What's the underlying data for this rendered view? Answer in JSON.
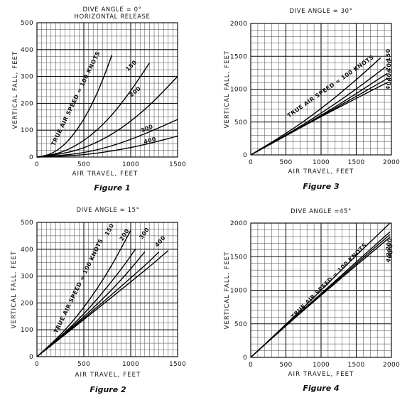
{
  "chart_data": [
    {
      "type": "line",
      "id": "fig1",
      "title": "DIVE ANGLE = 0°",
      "subtitle": "HORIZONTAL RELEASE",
      "xlabel": "AIR TRAVEL, FEET",
      "ylabel": "VERTICAL FALL, FEET",
      "caption": "Figure 1",
      "xlim": [
        0,
        1500
      ],
      "ylim": [
        0,
        500
      ],
      "xticks": [
        "0",
        "500",
        "1000",
        "1500"
      ],
      "yticks": [
        "0",
        "100",
        "200",
        "300",
        "400",
        "500"
      ],
      "grid": true,
      "series": [
        {
          "name": "TRUE AIR SPEED = 100 KNOTS",
          "x": [
            0,
            100,
            200,
            300,
            400,
            500,
            600,
            700,
            800
          ],
          "y": [
            0,
            5,
            21,
            48,
            88,
            140,
            205,
            285,
            380
          ]
        },
        {
          "name": "150",
          "x": [
            0,
            200,
            400,
            600,
            800,
            1000,
            1200
          ],
          "y": [
            0,
            9,
            38,
            86,
            155,
            245,
            350
          ]
        },
        {
          "name": "200",
          "x": [
            0,
            300,
            600,
            900,
            1200,
            1500
          ],
          "y": [
            0,
            11,
            46,
            105,
            190,
            300
          ]
        },
        {
          "name": "300",
          "x": [
            0,
            300,
            600,
            900,
            1200,
            1500
          ],
          "y": [
            0,
            6,
            22,
            52,
            93,
            140
          ]
        },
        {
          "name": "400",
          "x": [
            0,
            300,
            600,
            900,
            1200,
            1500
          ],
          "y": [
            0,
            3,
            12,
            28,
            50,
            78
          ]
        }
      ]
    },
    {
      "type": "line",
      "id": "fig3",
      "title": "DIVE ANGLE = 30°",
      "xlabel": "AIR TRAVEL, FEET",
      "ylabel": "VERTICAL FALL, FEET",
      "caption": "Figure 3",
      "xlim": [
        0,
        2000
      ],
      "ylim": [
        0,
        2000
      ],
      "xticks": [
        "0",
        "500",
        "1000",
        "1500",
        "2000"
      ],
      "yticks": [
        "0",
        "500",
        "1000",
        "1500",
        "2000"
      ],
      "grid": true,
      "series": [
        {
          "name": "TRUE AIR SPEED = 100 KNOTS",
          "x": [
            0,
            500,
            1000,
            1500,
            1850
          ],
          "y": [
            0,
            318,
            700,
            1140,
            1480
          ]
        },
        {
          "name": "150",
          "x": [
            0,
            500,
            1000,
            1500,
            1920
          ],
          "y": [
            0,
            300,
            630,
            1000,
            1340
          ]
        },
        {
          "name": "200",
          "x": [
            0,
            500,
            1000,
            1500,
            1940
          ],
          "y": [
            0,
            292,
            600,
            930,
            1240
          ]
        },
        {
          "name": "300",
          "x": [
            0,
            500,
            1000,
            1500,
            1940
          ],
          "y": [
            0,
            292,
            592,
            890,
            1160
          ]
        },
        {
          "name": "400",
          "x": [
            0,
            500,
            1000,
            1500,
            1940
          ],
          "y": [
            0,
            290,
            585,
            860,
            1100
          ]
        }
      ]
    },
    {
      "type": "line",
      "id": "fig2",
      "title": "DIVE ANGLE = 15°",
      "xlabel": "AIR TRAVEL, FEET",
      "ylabel": "VERTICAL FALL, FEET",
      "caption": "Figure 2",
      "xlim": [
        0,
        1500
      ],
      "ylim": [
        0,
        500
      ],
      "xticks": [
        "0",
        "500",
        "1000",
        "1500"
      ],
      "yticks": [
        "0",
        "100",
        "200",
        "300",
        "400",
        "500"
      ],
      "grid": true,
      "series": [
        {
          "name": "TRUE AIR SPEED = 100 KNOTS",
          "x": [
            0,
            200,
            400,
            600,
            800,
            1000
          ],
          "y": [
            0,
            62,
            138,
            230,
            340,
            470
          ]
        },
        {
          "name": "150",
          "x": [
            0,
            300,
            600,
            900,
            1050
          ],
          "y": [
            0,
            88,
            195,
            325,
            400
          ]
        },
        {
          "name": "200",
          "x": [
            0,
            300,
            600,
            900,
            1150
          ],
          "y": [
            0,
            86,
            180,
            285,
            390
          ]
        },
        {
          "name": "300",
          "x": [
            0,
            300,
            600,
            900,
            1200,
            1300
          ],
          "y": [
            0,
            84,
            172,
            262,
            355,
            390
          ]
        },
        {
          "name": "400",
          "x": [
            0,
            300,
            600,
            900,
            1200,
            1400
          ],
          "y": [
            0,
            82,
            166,
            250,
            335,
            395
          ]
        }
      ]
    },
    {
      "type": "line",
      "id": "fig4",
      "title": "DIVE ANGLE =45°",
      "xlabel": "AIR TRAVEL, FEET",
      "ylabel": "VERTICAL FALL, FEET",
      "caption": "Figure 4",
      "xlim": [
        0,
        2000
      ],
      "ylim": [
        0,
        2000
      ],
      "xticks": [
        "0",
        "500",
        "1000",
        "1500",
        "2000"
      ],
      "yticks": [
        "0",
        "500",
        "1000",
        "1500",
        "2000"
      ],
      "grid": true,
      "series": [
        {
          "name": "TRUE AIR SPEED = 100 KNOTS",
          "x": [
            0,
            500,
            1000,
            1500,
            1980
          ],
          "y": [
            0,
            490,
            1000,
            1520,
            2000
          ]
        },
        {
          "name": "200",
          "x": [
            0,
            500,
            1000,
            1500,
            1980
          ],
          "y": [
            0,
            480,
            950,
            1420,
            1870
          ]
        },
        {
          "name": "300",
          "x": [
            0,
            500,
            1000,
            1500,
            1980
          ],
          "y": [
            0,
            476,
            938,
            1395,
            1830
          ]
        },
        {
          "name": "400",
          "x": [
            0,
            500,
            1000,
            1500,
            1980
          ],
          "y": [
            0,
            472,
            925,
            1370,
            1790
          ]
        }
      ]
    }
  ]
}
